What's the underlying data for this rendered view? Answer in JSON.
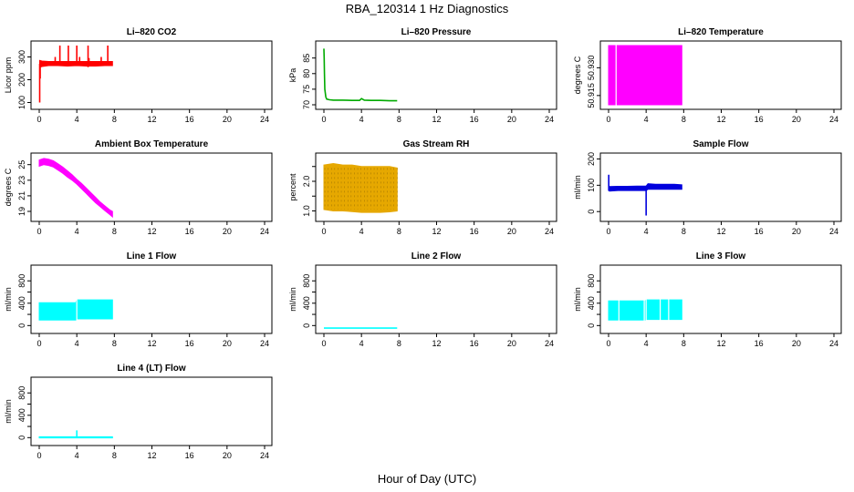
{
  "title": "RBA_120314  1 Hz Diagnostics",
  "xlabel": "Hour of Day (UTC)",
  "chart_data": [
    {
      "type": "line",
      "title": "Li–820 CO2",
      "ylabel": "Licor ppm",
      "color": "#ff0000",
      "xlim": [
        0,
        24
      ],
      "ylim": [
        90,
        350
      ],
      "xticks": [
        0,
        4,
        8,
        12,
        16,
        20,
        24
      ],
      "yticks": [
        100,
        200,
        300
      ],
      "ytick_labels": [
        "100",
        "200",
        "300"
      ],
      "series": [
        {
          "name": "CO2",
          "render": "band",
          "x": [
            0.05,
            0.3,
            1,
            2,
            3,
            4,
            5,
            6,
            7,
            7.8
          ],
          "lo": [
            255,
            258,
            262,
            262,
            260,
            262,
            260,
            260,
            262,
            262
          ],
          "hi": [
            285,
            282,
            280,
            280,
            280,
            280,
            280,
            280,
            280,
            280
          ]
        },
        {
          "name": "CO2 spikes",
          "render": "spikes",
          "x": [
            0.05,
            0.1,
            1.7,
            2.2,
            3.1,
            4.0,
            4.3,
            5.2,
            5.3,
            6.6,
            7.3
          ],
          "lo": [
            100,
            205,
            270,
            270,
            270,
            260,
            270,
            255,
            270,
            270,
            270
          ],
          "hi": [
            270,
            270,
            300,
            350,
            350,
            350,
            300,
            350,
            295,
            300,
            350
          ]
        }
      ]
    },
    {
      "type": "line",
      "title": "Li–820 Pressure",
      "ylabel": "kPa",
      "color": "#00aa00",
      "xlim": [
        0,
        24
      ],
      "ylim": [
        70,
        89
      ],
      "xticks": [
        0,
        4,
        8,
        12,
        16,
        20,
        24
      ],
      "yticks": [
        70,
        75,
        80,
        85
      ],
      "ytick_labels": [
        "70",
        "75",
        "80",
        "85"
      ],
      "series": [
        {
          "name": "Pressure",
          "render": "line",
          "x": [
            0,
            0.03,
            0.06,
            0.1,
            0.2,
            0.3,
            0.6,
            1,
            2,
            3,
            3.8,
            4.0,
            4.3,
            5,
            6,
            7,
            7.8
          ],
          "y": [
            88,
            85,
            80,
            75,
            72.5,
            71.8,
            71.6,
            71.5,
            71.5,
            71.4,
            71.4,
            72,
            71.5,
            71.4,
            71.4,
            71.3,
            71.3
          ]
        }
      ]
    },
    {
      "type": "line",
      "title": "Li–820 Temperature",
      "ylabel": "degrees C",
      "color": "#ff00ff",
      "xlim": [
        0,
        24
      ],
      "ylim": [
        50.91,
        50.942
      ],
      "xticks": [
        0,
        4,
        8,
        12,
        16,
        20,
        24
      ],
      "yticks": [
        50.915,
        50.93
      ],
      "ytick_labels": [
        "50.915",
        "50.930"
      ],
      "series": [
        {
          "name": "Temperature",
          "render": "band",
          "x": [
            0,
            7.8
          ],
          "lo": [
            50.91,
            50.91
          ],
          "hi": [
            50.942,
            50.942
          ]
        }
      ],
      "gaps": [
        0.8
      ]
    },
    {
      "type": "line",
      "title": "Ambient Box Temperature",
      "ylabel": "degrees C",
      "color": "#ff00ff",
      "xlim": [
        0,
        24
      ],
      "ylim": [
        18.3,
        25.9
      ],
      "xticks": [
        0,
        4,
        8,
        12,
        16,
        20,
        24
      ],
      "yticks": [
        19,
        21,
        23,
        25
      ],
      "ytick_labels": [
        "19",
        "21",
        "23",
        "25"
      ],
      "series": [
        {
          "name": "Box Temp",
          "render": "band",
          "x": [
            0,
            0.5,
            1,
            1.5,
            2,
            2.5,
            3,
            3.5,
            4,
            4.5,
            5,
            5.5,
            6,
            6.5,
            7,
            7.5,
            7.8
          ],
          "lo": [
            24.8,
            25.0,
            24.9,
            24.7,
            24.3,
            23.9,
            23.4,
            23.0,
            22.5,
            21.9,
            21.3,
            20.7,
            20.1,
            19.6,
            19.1,
            18.6,
            18.3
          ],
          "hi": [
            25.6,
            25.8,
            25.7,
            25.5,
            25.1,
            24.7,
            24.2,
            23.7,
            23.1,
            22.6,
            22.0,
            21.4,
            20.8,
            20.2,
            19.7,
            19.2,
            19.0
          ]
        }
      ]
    },
    {
      "type": "line",
      "title": "Gas Stream RH",
      "ylabel": "percent",
      "color": "#e6a800",
      "xlim": [
        0,
        24
      ],
      "ylim": [
        0.8,
        2.8
      ],
      "xticks": [
        0,
        4,
        8,
        12,
        16,
        20,
        24
      ],
      "yticks": [
        1.0,
        1.5,
        2.0,
        2.5
      ],
      "ytick_labels": [
        "1.0",
        "",
        "2.0",
        ""
      ],
      "series": [
        {
          "name": "RH",
          "render": "band",
          "x": [
            0,
            1,
            2,
            3,
            4,
            5,
            6,
            7,
            7.8
          ],
          "lo": [
            1.05,
            1.0,
            1.0,
            0.98,
            0.95,
            0.95,
            0.95,
            0.97,
            1.0
          ],
          "hi": [
            2.55,
            2.6,
            2.55,
            2.55,
            2.5,
            2.5,
            2.5,
            2.5,
            2.45
          ]
        }
      ]
    },
    {
      "type": "line",
      "title": "Sample Flow",
      "ylabel": "ml/min",
      "color": "#0000dd",
      "xlim": [
        0,
        24
      ],
      "ylim": [
        -20,
        205
      ],
      "xticks": [
        0,
        4,
        8,
        12,
        16,
        20,
        24
      ],
      "yticks": [
        0,
        100,
        200
      ],
      "ytick_labels": [
        "0",
        "100",
        "200"
      ],
      "series": [
        {
          "name": "Sample Flow",
          "render": "band",
          "x": [
            0,
            0.1,
            1,
            2,
            3,
            4,
            4.2,
            5,
            6,
            7,
            7.8
          ],
          "lo": [
            80,
            78,
            80,
            80,
            80,
            80,
            85,
            85,
            85,
            85,
            85
          ],
          "hi": [
            100,
            95,
            96,
            96,
            97,
            97,
            106,
            104,
            104,
            104,
            102
          ]
        },
        {
          "name": "spikes",
          "render": "spikes",
          "x": [
            0.02,
            4.0
          ],
          "lo": [
            80,
            -15
          ],
          "hi": [
            140,
            98
          ]
        }
      ]
    },
    {
      "type": "line",
      "title": "Line 1 Flow",
      "ylabel": "ml/min",
      "color": "#00ffff",
      "xlim": [
        0,
        24
      ],
      "ylim": [
        -60,
        1000
      ],
      "xticks": [
        0,
        4,
        8,
        12,
        16,
        20,
        24
      ],
      "yticks": [
        0,
        200,
        400,
        600,
        800
      ],
      "ytick_labels": [
        "0",
        "",
        "400",
        "",
        "800"
      ],
      "series": [
        {
          "name": "Line 1",
          "render": "band",
          "x": [
            0,
            3.9,
            4.0,
            7.8
          ],
          "lo": [
            100,
            100,
            120,
            120
          ],
          "hi": [
            410,
            410,
            460,
            460
          ]
        }
      ],
      "gaps": [
        4.0
      ]
    },
    {
      "type": "line",
      "title": "Line 2 Flow",
      "ylabel": "ml/min",
      "color": "#00ffff",
      "xlim": [
        0,
        24
      ],
      "ylim": [
        -60,
        1000
      ],
      "xticks": [
        0,
        4,
        8,
        12,
        16,
        20,
        24
      ],
      "yticks": [
        0,
        200,
        400,
        600,
        800
      ],
      "ytick_labels": [
        "0",
        "",
        "400",
        "",
        "800"
      ],
      "series": [
        {
          "name": "Line 2",
          "render": "line",
          "x": [
            0,
            7.8
          ],
          "y": [
            -45,
            -45
          ]
        }
      ]
    },
    {
      "type": "line",
      "title": "Line 3 Flow",
      "ylabel": "ml/min",
      "color": "#00ffff",
      "xlim": [
        0,
        24
      ],
      "ylim": [
        -60,
        1000
      ],
      "xticks": [
        0,
        4,
        8,
        12,
        16,
        20,
        24
      ],
      "yticks": [
        0,
        200,
        400,
        600,
        800
      ],
      "ytick_labels": [
        "0",
        "",
        "400",
        "",
        "800"
      ],
      "series": [
        {
          "name": "Line 3",
          "render": "band",
          "x": [
            0,
            3.9,
            4.0,
            7.8
          ],
          "lo": [
            100,
            100,
            110,
            110
          ],
          "hi": [
            440,
            440,
            460,
            460
          ]
        }
      ],
      "gaps": [
        1.1,
        3.8,
        4.0,
        5.5,
        6.4
      ]
    },
    {
      "type": "line",
      "title": "Line 4 (LT) Flow",
      "ylabel": "ml/min",
      "color": "#00ffff",
      "xlim": [
        0,
        24
      ],
      "ylim": [
        -60,
        1000
      ],
      "xticks": [
        0,
        4,
        8,
        12,
        16,
        20,
        24
      ],
      "yticks": [
        0,
        200,
        400,
        600,
        800
      ],
      "ytick_labels": [
        "0",
        "",
        "400",
        "",
        "800"
      ],
      "series": [
        {
          "name": "Line 4",
          "render": "band",
          "x": [
            0,
            7.8
          ],
          "lo": [
            -5,
            -5
          ],
          "hi": [
            15,
            15
          ]
        },
        {
          "name": "spike",
          "render": "spikes",
          "x": [
            4.0
          ],
          "lo": [
            10
          ],
          "hi": [
            130
          ]
        }
      ]
    }
  ]
}
